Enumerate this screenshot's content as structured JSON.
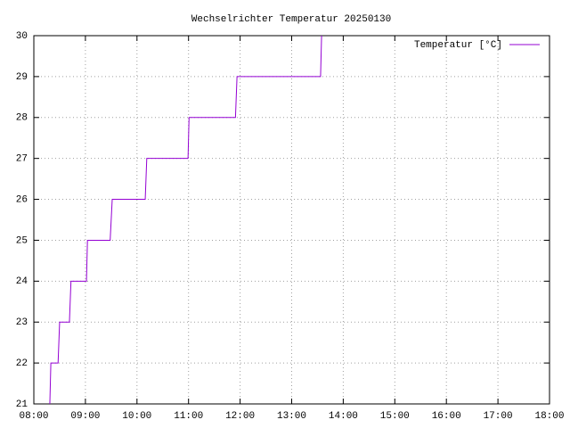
{
  "chart_data": {
    "type": "line",
    "title": "Wechselrichter Temperatur 20250130",
    "x": [
      8.31,
      8.33,
      8.47,
      8.5,
      8.69,
      8.72,
      9.02,
      9.04,
      9.48,
      9.52,
      10.16,
      10.19,
      10.99,
      11.01,
      11.91,
      11.94,
      13.56,
      13.58
    ],
    "series": [
      {
        "name": "Temperatur [°C]",
        "color": "#9400d3",
        "values": [
          21,
          22,
          22,
          23,
          23,
          24,
          24,
          25,
          25,
          26,
          26,
          27,
          27,
          28,
          28,
          29,
          29,
          30
        ]
      }
    ],
    "xlim": [
      8,
      18
    ],
    "xticks": [
      {
        "value": 8,
        "label": "08:00"
      },
      {
        "value": 9,
        "label": "09:00"
      },
      {
        "value": 10,
        "label": "10:00"
      },
      {
        "value": 11,
        "label": "11:00"
      },
      {
        "value": 12,
        "label": "12:00"
      },
      {
        "value": 13,
        "label": "13:00"
      },
      {
        "value": 14,
        "label": "14:00"
      },
      {
        "value": 15,
        "label": "15:00"
      },
      {
        "value": 16,
        "label": "16:00"
      },
      {
        "value": 17,
        "label": "17:00"
      },
      {
        "value": 18,
        "label": "18:00"
      }
    ],
    "ylim": [
      21,
      30
    ],
    "yticks": [
      21,
      22,
      23,
      24,
      25,
      26,
      27,
      28,
      29,
      30
    ],
    "grid": true,
    "legend": "top-right"
  }
}
